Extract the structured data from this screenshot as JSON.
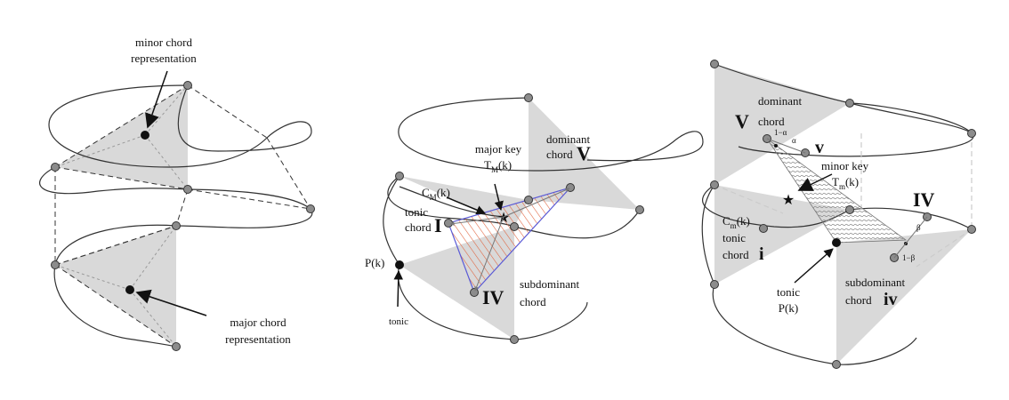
{
  "panel1": {
    "minor_label_1": "minor chord",
    "minor_label_2": "representation",
    "major_label_1": "major chord",
    "major_label_2": "representation"
  },
  "panel2": {
    "major_key_1": "major key",
    "major_key_2": "T",
    "major_key_sub": "M",
    "major_key_arg": "(k)",
    "dominant_1": "dominant",
    "dominant_2": "chord",
    "dominant_roman": "V",
    "cm_main": "C",
    "cm_sub": "M",
    "cm_arg": "(k)",
    "tonic_1": "tonic",
    "tonic_2": "chord",
    "tonic_roman": "I",
    "pk": "P(k)",
    "tonic_bottom": "tonic",
    "subdominant_1": "subdominant",
    "subdominant_2": "chord",
    "subdominant_roman": "IV"
  },
  "panel3": {
    "dominant_1": "dominant",
    "dominant_roman": "V",
    "dominant_2": "chord",
    "one_minus_alpha": "1−α",
    "alpha": "α",
    "minor_v": "v",
    "minor_key_1": "minor key",
    "minor_key_2": "T",
    "minor_key_sub": "m",
    "minor_key_arg": "(k)",
    "major_iv": "IV",
    "cm_main": "C",
    "cm_sub": "m",
    "cm_arg": "(k)",
    "tonic_chord_1": "tonic",
    "tonic_chord_2": "chord",
    "minor_i": "i",
    "beta": "β",
    "one_minus_beta": "1−β",
    "tonic_1": "tonic",
    "tonic_2": "P(k)",
    "subdominant_1": "subdominant",
    "subdominant_2": "chord",
    "minor_iv": "iv"
  }
}
